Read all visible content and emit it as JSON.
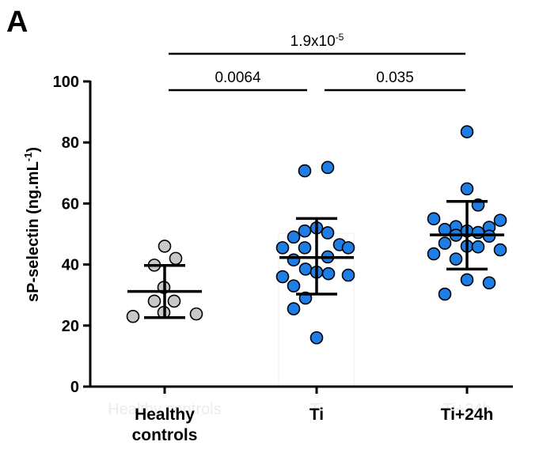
{
  "figure": {
    "panel_label": "A"
  },
  "chart_data": {
    "type": "scatter",
    "style": "dot-plot with mean and SD error bars",
    "ylabel": {
      "main": "sP-selectin (ng.mL",
      "sup": "-1",
      "close": ")"
    },
    "ylim": [
      0,
      100
    ],
    "yticks": [
      0,
      20,
      40,
      60,
      80,
      100
    ],
    "categories": [
      {
        "lines": [
          "Healthy",
          "controls"
        ],
        "ghost_label": "Healthy controls"
      },
      {
        "lines": [
          "Ti"
        ],
        "ghost_label": "Ti"
      },
      {
        "lines": [
          "Ti+24h"
        ],
        "ghost_label": "Ti+24h"
      }
    ],
    "colors": {
      "healthy": "#c8c8c8",
      "ti": "#1e7ee6",
      "stroke": "#000000",
      "axis": "#000000"
    },
    "series": [
      {
        "fill": "#c8c8c8",
        "mean": 31.2,
        "sd_low": 22.6,
        "sd_high": 39.7,
        "points": [
          {
            "y": 46.0,
            "dx": 0
          },
          {
            "y": 42.0,
            "dx": 14
          },
          {
            "y": 39.8,
            "dx": -13
          },
          {
            "y": 32.5,
            "dx": -1
          },
          {
            "y": 28.0,
            "dx": -13
          },
          {
            "y": 28.0,
            "dx": 12
          },
          {
            "y": 24.3,
            "dx": -1
          },
          {
            "y": 23.8,
            "dx": 40
          },
          {
            "y": 23.0,
            "dx": -40
          }
        ]
      },
      {
        "fill": "#1e7ee6",
        "mean": 42.3,
        "sd_low": 30.3,
        "sd_high": 55.1,
        "points": [
          {
            "y": 71.8,
            "dx": 14
          },
          {
            "y": 70.7,
            "dx": -15
          },
          {
            "y": 52.0,
            "dx": 0
          },
          {
            "y": 51.0,
            "dx": -15
          },
          {
            "y": 50.4,
            "dx": 14
          },
          {
            "y": 49.0,
            "dx": -29
          },
          {
            "y": 46.5,
            "dx": 29
          },
          {
            "y": 45.5,
            "dx": -43
          },
          {
            "y": 45.5,
            "dx": -15
          },
          {
            "y": 45.5,
            "dx": 40
          },
          {
            "y": 42.5,
            "dx": 14
          },
          {
            "y": 41.5,
            "dx": -29
          },
          {
            "y": 38.5,
            "dx": -14
          },
          {
            "y": 37.5,
            "dx": 0
          },
          {
            "y": 37.0,
            "dx": 15
          },
          {
            "y": 36.5,
            "dx": 40
          },
          {
            "y": 36.0,
            "dx": -43
          },
          {
            "y": 33.0,
            "dx": -29
          },
          {
            "y": 29.0,
            "dx": -14
          },
          {
            "y": 25.5,
            "dx": -29
          },
          {
            "y": 16.0,
            "dx": 0
          }
        ]
      },
      {
        "fill": "#1e7ee6",
        "mean": 49.7,
        "sd_low": 38.5,
        "sd_high": 60.7,
        "points": [
          {
            "y": 83.5,
            "dx": 0
          },
          {
            "y": 64.8,
            "dx": 0
          },
          {
            "y": 59.5,
            "dx": 14
          },
          {
            "y": 55.0,
            "dx": -42
          },
          {
            "y": 54.5,
            "dx": 42
          },
          {
            "y": 52.4,
            "dx": -14
          },
          {
            "y": 52.2,
            "dx": 28
          },
          {
            "y": 51.5,
            "dx": -28
          },
          {
            "y": 51.0,
            "dx": 0
          },
          {
            "y": 50.5,
            "dx": 14
          },
          {
            "y": 49.6,
            "dx": -14
          },
          {
            "y": 49.3,
            "dx": 28
          },
          {
            "y": 47.0,
            "dx": -28
          },
          {
            "y": 46.0,
            "dx": 0
          },
          {
            "y": 45.8,
            "dx": 14
          },
          {
            "y": 44.8,
            "dx": 42
          },
          {
            "y": 43.5,
            "dx": -42
          },
          {
            "y": 41.8,
            "dx": -14
          },
          {
            "y": 35.0,
            "dx": 0
          },
          {
            "y": 34.0,
            "dx": 28
          },
          {
            "y": 30.3,
            "dx": -28
          }
        ]
      }
    ],
    "comparisons": [
      {
        "from": 0,
        "to": 1,
        "label": "0.0064",
        "level": 1
      },
      {
        "from": 1,
        "to": 2,
        "label": "0.035",
        "level": 1
      },
      {
        "from": 0,
        "to": 2,
        "label": "1.9x10",
        "sup": "-5",
        "level": 2
      }
    ]
  }
}
